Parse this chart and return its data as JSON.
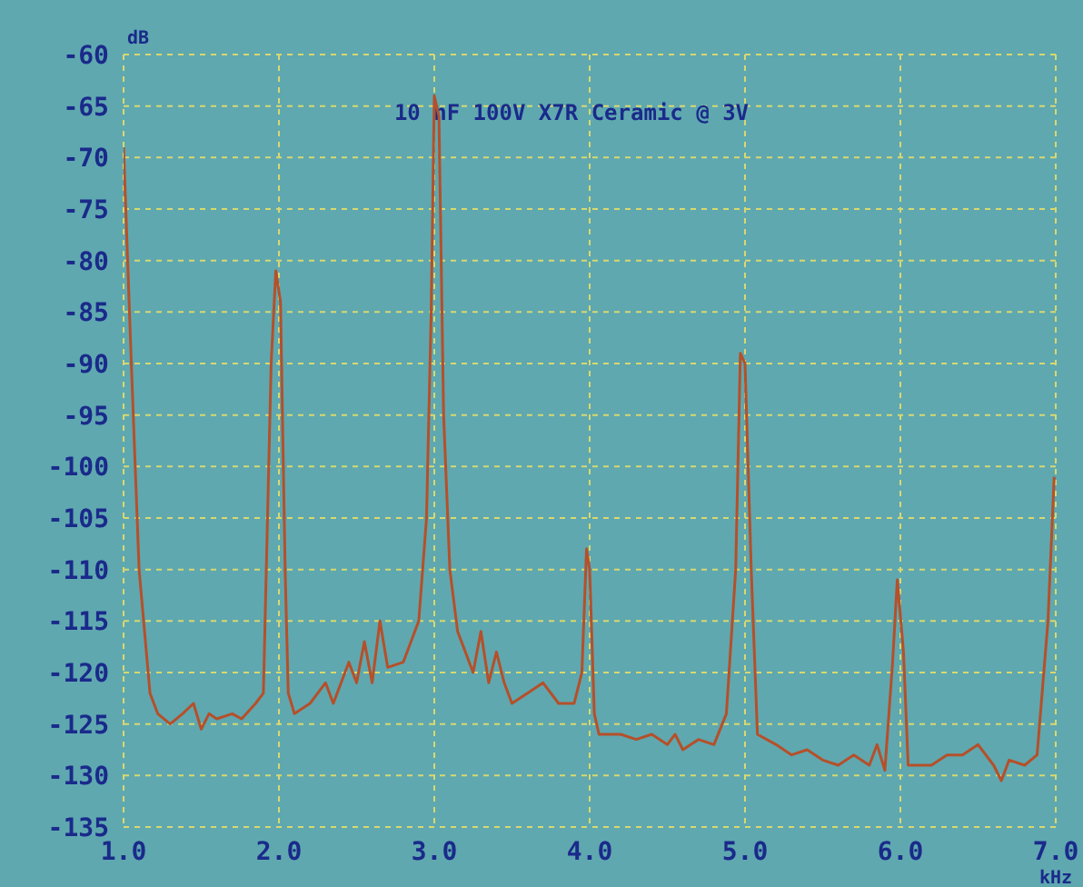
{
  "chart_data": {
    "type": "line",
    "title": "10 nF 100V X7R Ceramic @ 3V",
    "xlabel": "kHz",
    "ylabel": "dB",
    "xlim": [
      1.0,
      7.0
    ],
    "xticks": [
      {
        "value": 1,
        "label": "1.0"
      },
      {
        "value": 2,
        "label": "2.0"
      },
      {
        "value": 3,
        "label": "3.0"
      },
      {
        "value": 4,
        "label": "4.0"
      },
      {
        "value": 5,
        "label": "5.0"
      },
      {
        "value": 6,
        "label": "6.0"
      },
      {
        "value": 7,
        "label": "7.0"
      }
    ],
    "ylim": [
      -135,
      -60
    ],
    "yticks": [
      -135,
      -130,
      -125,
      -120,
      -115,
      -110,
      -105,
      -100,
      -95,
      -90,
      -85,
      -80,
      -75,
      -70,
      -65,
      -60
    ],
    "grid": true,
    "marker": "none",
    "line_style": "solid",
    "series": [
      {
        "color": "#b5502a",
        "x": [
          1.0,
          1.05,
          1.1,
          1.17,
          1.22,
          1.3,
          1.38,
          1.45,
          1.5,
          1.55,
          1.6,
          1.7,
          1.76,
          1.85,
          1.9,
          1.95,
          1.98,
          2.01,
          2.04,
          2.06,
          2.1,
          2.2,
          2.3,
          2.35,
          2.45,
          2.5,
          2.55,
          2.6,
          2.65,
          2.7,
          2.8,
          2.9,
          2.95,
          2.98,
          3.0,
          3.03,
          3.06,
          3.1,
          3.15,
          3.25,
          3.3,
          3.35,
          3.4,
          3.45,
          3.5,
          3.6,
          3.7,
          3.8,
          3.9,
          3.95,
          3.98,
          4.0,
          4.03,
          4.06,
          4.2,
          4.3,
          4.4,
          4.5,
          4.55,
          4.6,
          4.7,
          4.8,
          4.88,
          4.94,
          4.97,
          5.0,
          5.04,
          5.08,
          5.2,
          5.3,
          5.4,
          5.5,
          5.6,
          5.7,
          5.8,
          5.85,
          5.9,
          5.95,
          5.98,
          6.02,
          6.05,
          6.2,
          6.3,
          6.4,
          6.5,
          6.6,
          6.65,
          6.7,
          6.8,
          6.88,
          6.95,
          6.99
        ],
        "values": [
          -69,
          -90,
          -110,
          -122,
          -124,
          -125,
          -124,
          -123,
          -125.5,
          -124,
          -124.5,
          -124,
          -124.5,
          -123,
          -122,
          -90,
          -81,
          -84,
          -110,
          -122,
          -124,
          -123,
          -121,
          -123,
          -119,
          -121,
          -117,
          -121,
          -115,
          -119.5,
          -119,
          -115,
          -105,
          -85,
          -64,
          -66,
          -95,
          -110,
          -116,
          -120,
          -116,
          -121,
          -118,
          -121,
          -123,
          -122,
          -121,
          -123,
          -123,
          -120,
          -108,
          -110,
          -124,
          -126,
          -126,
          -126.5,
          -126,
          -127,
          -126,
          -127.5,
          -126.5,
          -127,
          -124,
          -110,
          -89,
          -90,
          -110,
          -126,
          -127,
          -128,
          -127.5,
          -128.5,
          -129,
          -128,
          -129,
          -127,
          -129.5,
          -119,
          -111,
          -118,
          -129,
          -129,
          -128,
          -128,
          -127,
          -129,
          -130.5,
          -128.5,
          -129,
          -128,
          -115,
          -101
        ]
      }
    ]
  }
}
